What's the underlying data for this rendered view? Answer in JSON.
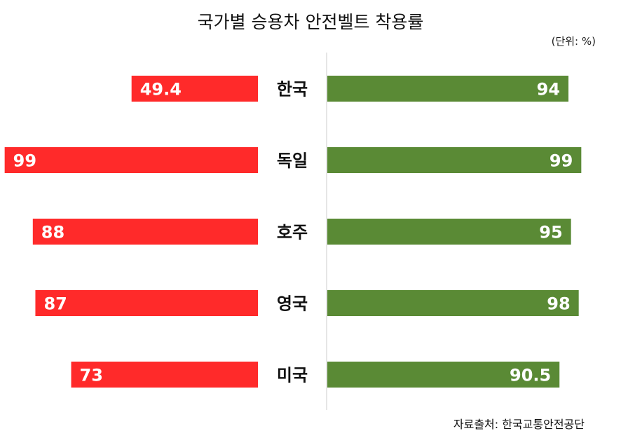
{
  "title": "국가별 승용차 안전벨트 착용률",
  "unit_label": "(단위: %)",
  "source": "자료출처: 한국교통안전공단",
  "colors": {
    "left_bar": "#ff2a2a",
    "right_bar": "#5a8a35",
    "axis": "#cccccc"
  },
  "chart_data": {
    "type": "bar",
    "orientation": "horizontal-butterfly",
    "categories": [
      "한국",
      "독일",
      "호주",
      "영국",
      "미국"
    ],
    "series": [
      {
        "values": [
          49.4,
          99,
          88,
          87,
          73
        ]
      },
      {
        "values": [
          94,
          99,
          95,
          98,
          90.5
        ]
      }
    ],
    "value_labels": {
      "left": [
        "49.4",
        "99",
        "88",
        "87",
        "73"
      ],
      "right": [
        "94",
        "99",
        "95",
        "98",
        "90.5"
      ]
    },
    "xlim": [
      0,
      100
    ],
    "grid": false,
    "legend": "none"
  }
}
